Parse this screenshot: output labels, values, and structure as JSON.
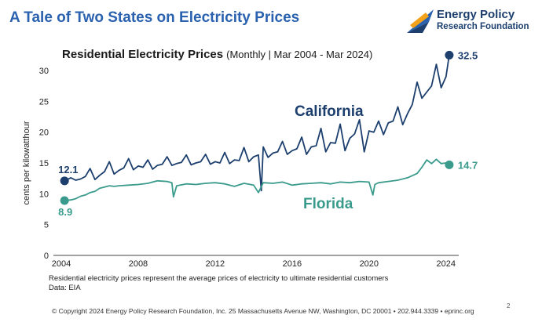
{
  "slide": {
    "title": "A Tale of Two States on Electricity Prices",
    "logo_line1": "Energy Policy",
    "logo_line2": "Research Foundation",
    "footnote1": "Residential electricity prices represent the average prices of electricity to ultimate residential customers",
    "footnote2": "Data: EIA",
    "copyright": "© Copyright 2024 Energy Policy Research Foundation, Inc. 25 Massachusetts Avenue NW, Washington, DC 20001 • 202.944.3339 • eprinc.org",
    "page_number": "2"
  },
  "colors": {
    "california": "#1c3f6e",
    "florida": "#3a9b8c",
    "title": "#2a62b0",
    "logo_orange": "#f5a21b",
    "logo_blue": "#2a62b0"
  },
  "chart_data": {
    "type": "line",
    "title": "Residential Electricity Prices",
    "subtitle": "(Monthly | Mar 2004 - Mar 2024)",
    "ylabel": "cents per kilowatthour",
    "xlabel": "",
    "ylim": [
      0,
      30
    ],
    "xlim": [
      2004,
      2024.5
    ],
    "yticks": [
      0,
      5,
      10,
      15,
      20,
      25,
      30
    ],
    "xticks": [
      2004,
      2008,
      2012,
      2016,
      2020,
      2024
    ],
    "grid": false,
    "series": [
      {
        "name": "California",
        "label": "California",
        "start_label": "12.1",
        "end_label": "32.5",
        "x": [
          2004.17,
          2004.5,
          2004.75,
          2005.0,
          2005.25,
          2005.5,
          2005.75,
          2006.0,
          2006.25,
          2006.5,
          2006.75,
          2007.0,
          2007.25,
          2007.5,
          2007.75,
          2008.0,
          2008.25,
          2008.5,
          2008.75,
          2009.0,
          2009.25,
          2009.5,
          2009.75,
          2010.0,
          2010.25,
          2010.5,
          2010.75,
          2011.0,
          2011.25,
          2011.5,
          2011.75,
          2012.0,
          2012.25,
          2012.5,
          2012.75,
          2013.0,
          2013.25,
          2013.5,
          2013.75,
          2014.0,
          2014.25,
          2014.4,
          2014.5,
          2014.75,
          2015.0,
          2015.25,
          2015.5,
          2015.75,
          2016.0,
          2016.25,
          2016.5,
          2016.75,
          2017.0,
          2017.25,
          2017.5,
          2017.75,
          2018.0,
          2018.25,
          2018.5,
          2018.75,
          2019.0,
          2019.25,
          2019.5,
          2019.75,
          2020.0,
          2020.25,
          2020.5,
          2020.75,
          2021.0,
          2021.25,
          2021.5,
          2021.75,
          2022.0,
          2022.25,
          2022.5,
          2022.75,
          2023.0,
          2023.25,
          2023.5,
          2023.75,
          2024.0,
          2024.17
        ],
        "values": [
          12.1,
          12.6,
          12.2,
          12.4,
          12.8,
          14.1,
          12.3,
          13.0,
          13.6,
          15.2,
          13.2,
          13.8,
          14.2,
          15.7,
          13.9,
          14.5,
          14.3,
          15.5,
          14.0,
          14.6,
          14.8,
          16.0,
          14.6,
          14.9,
          15.1,
          16.3,
          14.7,
          15.0,
          15.2,
          16.4,
          14.8,
          15.2,
          15.0,
          16.7,
          14.9,
          15.5,
          15.4,
          17.5,
          15.2,
          16.0,
          16.3,
          10.5,
          17.6,
          15.9,
          16.6,
          16.8,
          18.5,
          16.4,
          17.0,
          17.3,
          19.2,
          16.4,
          17.6,
          17.8,
          20.6,
          16.8,
          18.3,
          18.2,
          21.3,
          17.0,
          19.0,
          19.7,
          22.0,
          16.8,
          20.2,
          20.0,
          21.8,
          19.6,
          21.5,
          21.8,
          24.1,
          21.2,
          23.0,
          24.5,
          28.1,
          25.5,
          26.5,
          27.5,
          31.0,
          27.2,
          29.0,
          32.5
        ]
      },
      {
        "name": "Florida",
        "label": "Florida",
        "start_label": "8.9",
        "end_label": "14.7",
        "x": [
          2004.17,
          2004.5,
          2004.75,
          2005.0,
          2005.25,
          2005.5,
          2005.75,
          2006.0,
          2006.25,
          2006.5,
          2006.75,
          2007.0,
          2007.5,
          2008.0,
          2008.5,
          2009.0,
          2009.5,
          2009.75,
          2009.83,
          2010.0,
          2010.5,
          2011.0,
          2011.5,
          2012.0,
          2012.5,
          2013.0,
          2013.5,
          2014.0,
          2014.25,
          2014.5,
          2015.0,
          2015.5,
          2016.0,
          2016.5,
          2017.0,
          2017.5,
          2018.0,
          2018.5,
          2019.0,
          2019.5,
          2020.0,
          2020.2,
          2020.3,
          2020.5,
          2021.0,
          2021.5,
          2022.0,
          2022.5,
          2022.75,
          2023.0,
          2023.25,
          2023.5,
          2023.75,
          2024.0,
          2024.17
        ],
        "values": [
          8.9,
          9.0,
          9.2,
          9.6,
          9.8,
          10.2,
          10.4,
          10.9,
          11.1,
          11.3,
          11.2,
          11.3,
          11.4,
          11.5,
          11.7,
          12.1,
          12.0,
          11.8,
          9.5,
          11.3,
          11.6,
          11.5,
          11.7,
          11.8,
          11.6,
          11.2,
          11.7,
          11.4,
          10.2,
          11.8,
          11.7,
          11.9,
          11.4,
          11.6,
          11.7,
          11.8,
          11.6,
          11.9,
          11.8,
          12.0,
          11.9,
          9.8,
          11.5,
          11.8,
          12.0,
          12.2,
          12.6,
          13.3,
          14.3,
          15.5,
          14.9,
          15.6,
          14.9,
          15.0,
          14.7
        ]
      }
    ]
  }
}
